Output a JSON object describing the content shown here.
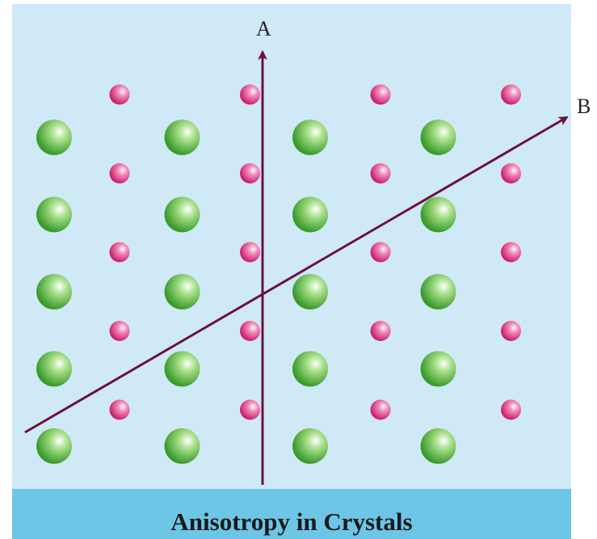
{
  "figure": {
    "caption": "Anisotropy in Crystals",
    "axis_a_label": "A",
    "axis_b_label": "B"
  },
  "lattice": {
    "large_atom_color": "#5fbf3f",
    "small_atom_color": "#e03c8a",
    "arrow_color": "#6b1140",
    "large_atom_rows": 5,
    "large_atom_cols": 4,
    "small_atom_rows": 5,
    "small_atom_cols": 4
  }
}
